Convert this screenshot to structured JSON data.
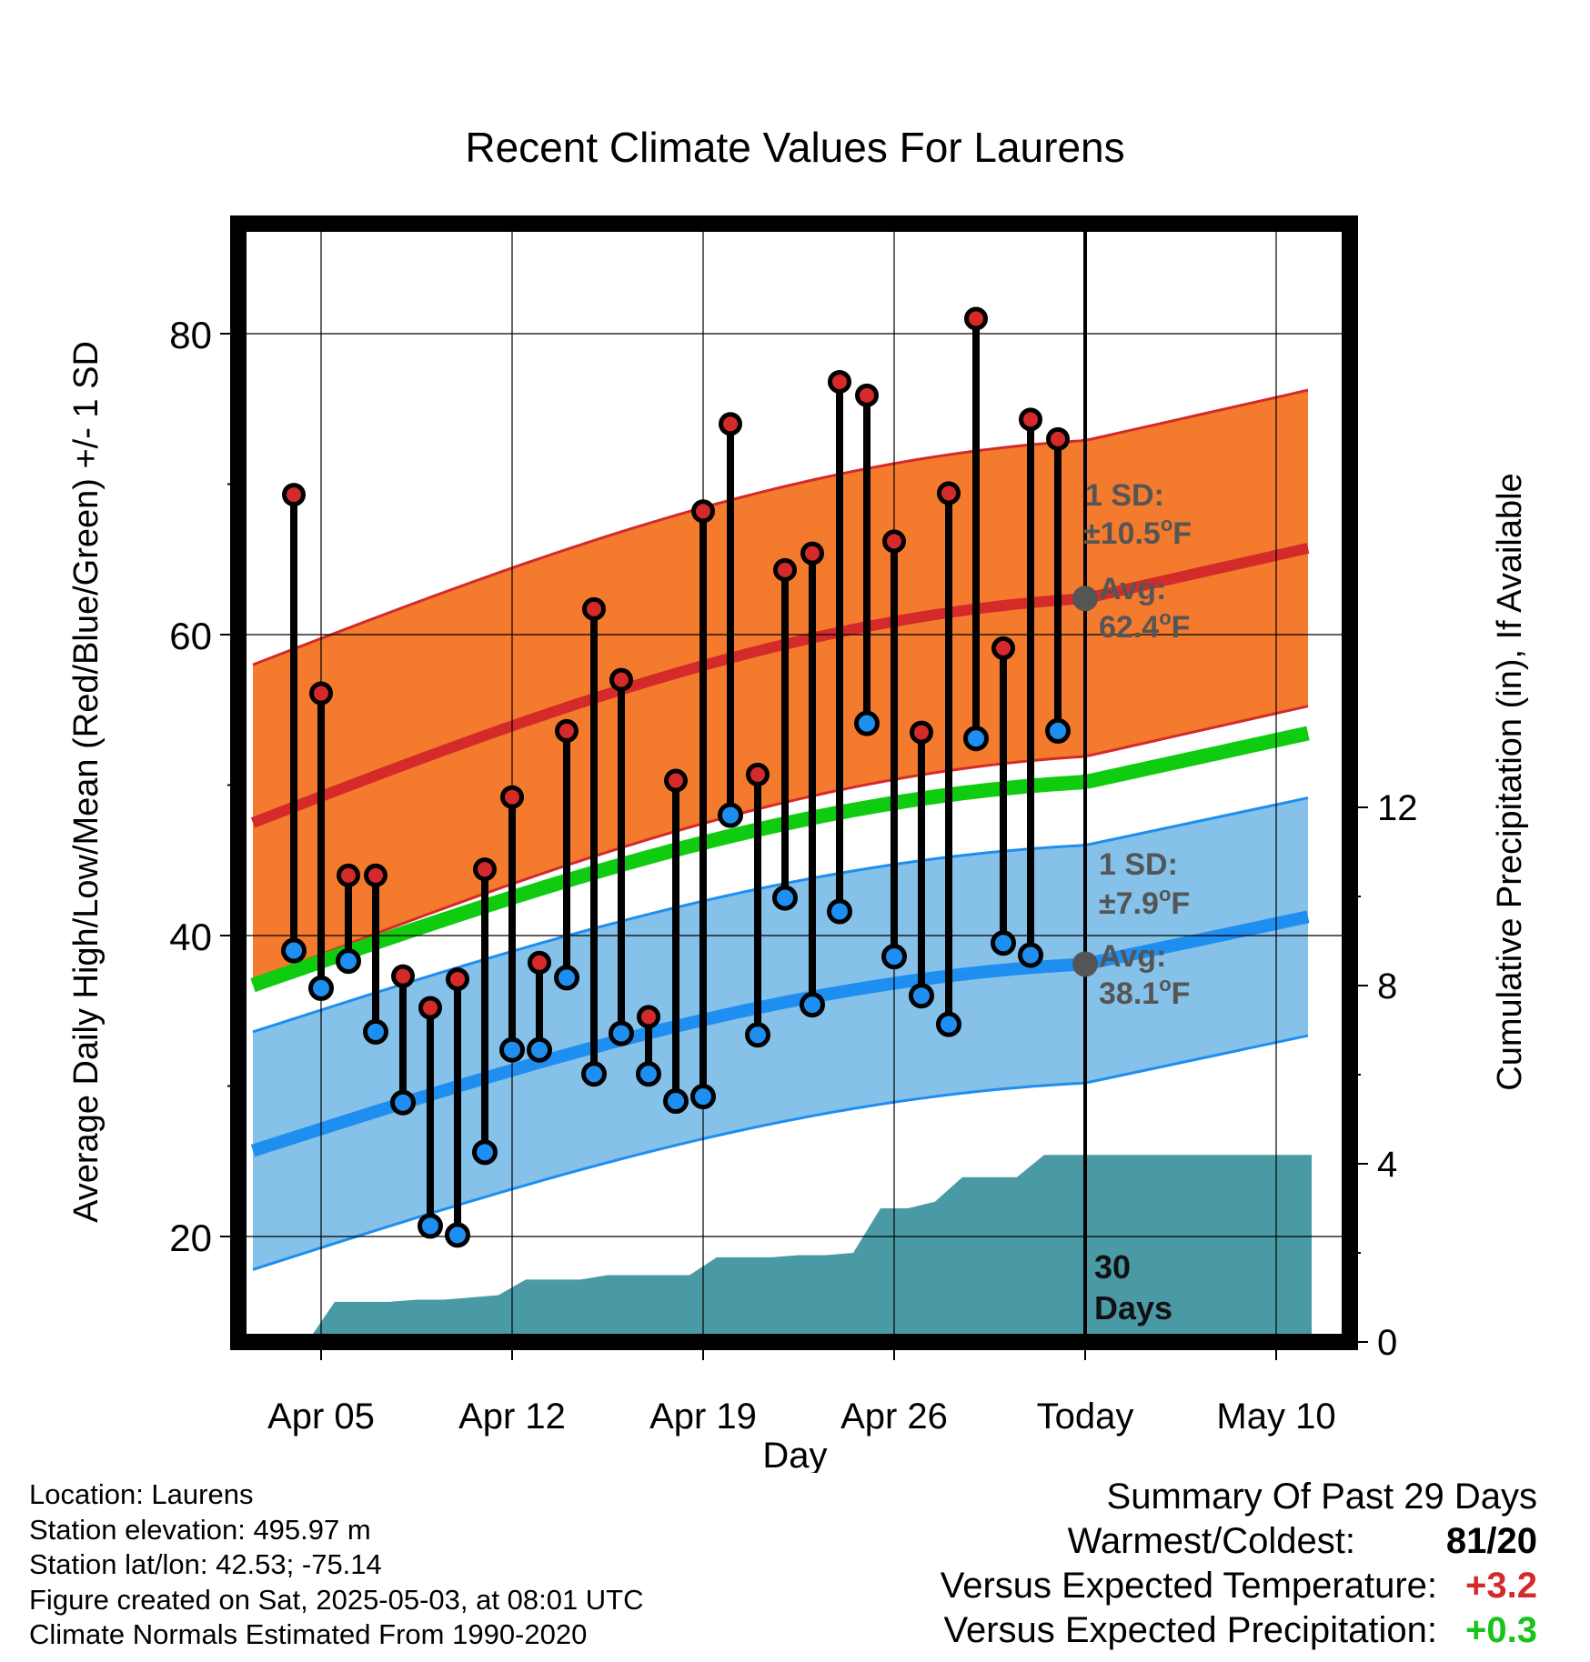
{
  "title": "Recent Climate Values For Laurens",
  "chart_data": {
    "type": "line",
    "title": "Recent Climate Values For Laurens",
    "xlabel": "Day",
    "ylabel": "Average Daily High/Low/Mean (Red/Blue/Green) +/- 1 SD",
    "y2label": "Cumulative Precipitation (in), If Available",
    "x_tick_labels": [
      "Apr 05",
      "Apr 12",
      "Apr 19",
      "Apr 26",
      "Today",
      "May 10"
    ],
    "y_ticks": [
      20,
      40,
      60,
      80
    ],
    "y2_ticks": [
      0,
      4,
      8,
      12
    ],
    "ylim": [
      12.5,
      87
    ],
    "y2lim": [
      0,
      25.2
    ],
    "grid": true,
    "today_label": "30 Days",
    "days": [
      -29,
      -28,
      -27,
      -26,
      -25,
      -24,
      -23,
      -22,
      -21,
      -20,
      -19,
      -18,
      -17,
      -16,
      -15,
      -14,
      -13,
      -12,
      -11,
      -10,
      -9,
      -8,
      -7,
      -6,
      -5,
      -4,
      -3,
      -2,
      -1
    ],
    "daily_high": [
      69.3,
      56.1,
      44.0,
      44.0,
      37.3,
      35.2,
      37.1,
      44.4,
      49.2,
      38.2,
      53.6,
      61.7,
      57.0,
      34.6,
      50.3,
      68.2,
      74.0,
      50.7,
      64.3,
      65.4,
      76.8,
      75.9,
      66.2,
      53.5,
      69.4,
      81.0,
      59.1,
      74.3,
      73.0
    ],
    "daily_low": [
      39.0,
      36.5,
      38.3,
      33.6,
      28.9,
      20.7,
      20.1,
      25.6,
      32.4,
      32.4,
      37.2,
      30.8,
      33.5,
      30.8,
      29.0,
      29.3,
      48.0,
      33.4,
      42.5,
      35.4,
      41.6,
      54.1,
      38.6,
      36.0,
      34.1,
      53.1,
      39.5,
      38.7,
      53.6
    ],
    "cumulative_precip": [
      0.0,
      0.0,
      0.9,
      0.9,
      0.9,
      0.95,
      0.95,
      1.0,
      1.05,
      1.4,
      1.4,
      1.4,
      1.5,
      1.5,
      1.5,
      1.5,
      1.9,
      1.9,
      1.9,
      1.95,
      1.95,
      2.0,
      3.0,
      3.0,
      3.15,
      3.7,
      3.7,
      3.7,
      4.2,
      4.2
    ],
    "normal_high": {
      "name": "Avg: 62.4°F",
      "start": 47.5,
      "today": 62.4,
      "end": 65.8
    },
    "normal_low": {
      "name": "Avg: 38.1°F",
      "start": 25.7,
      "today": 38.1,
      "end": 41.3
    },
    "normal_mean": {
      "start": 36.7,
      "today": 50.2,
      "end": 53.5
    },
    "high_sd": 10.5,
    "low_sd": 7.9,
    "annotations": {
      "high_sd_line1": "1 SD:",
      "high_sd_line2": "±10.5",
      "high_avg_line1": "Avg:",
      "high_avg_line2": "62.4",
      "low_sd_line1": "1 SD:",
      "low_sd_line2": "±7.9",
      "low_avg_line1": "Avg:",
      "low_avg_line2": "38.1",
      "deg": "o",
      "unit": "F"
    }
  },
  "footer": {
    "location": "Location: Laurens",
    "elevation": "Station elevation: 495.97 m",
    "latlon": "Station lat/lon: 42.53; -75.14",
    "created": "Figure created on Sat, 2025-05-03, at 08:01 UTC",
    "normals": "Climate Normals Estimated From 1990-2020"
  },
  "summary": {
    "heading": "Summary Of Past 29 Days",
    "warmest_label": "Warmest/Coldest:",
    "warmest_value": "81/20",
    "temp_label": "Versus Expected Temperature:",
    "temp_value": "+3.2",
    "precip_label": "Versus Expected Precipitation:",
    "precip_value": "+0.3"
  },
  "colors": {
    "high_band": "#f47a2e",
    "high_line": "#d42a2a",
    "low_band": "#85c1e8",
    "low_line": "#1e8ef0",
    "mean_line": "#10cc10",
    "precip_fill": "#4a9aa5",
    "high_dot": "#d42a2a",
    "low_dot": "#1e8ef0",
    "annotation": "#555555"
  }
}
